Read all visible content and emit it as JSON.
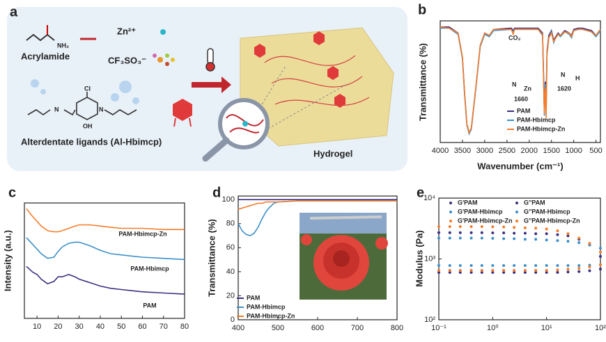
{
  "panel_a": {
    "label": "a",
    "acrylamide": "Acrylamide",
    "nh2": "NH₂",
    "zn": "Zn²⁺",
    "cf3so3": "CF₃SO₃⁻",
    "ligand": "Alterdentate ligands (Al-Hbimcp)",
    "hydrogel": "Hydrogel",
    "cl": "Cl",
    "oh": "OH",
    "n1": "N",
    "n2": "N"
  },
  "chart_data": [
    {
      "type": "line",
      "label": "b",
      "x_label": "Wavenumber (cm⁻¹)",
      "y_label": "Transmittance (%)",
      "xlim": [
        4000,
        400
      ],
      "xticks": [
        4000,
        3500,
        3000,
        2500,
        2000,
        1500,
        1000,
        500
      ],
      "ylim": [
        0,
        100
      ],
      "legend": "lower right",
      "annotations": [
        "CO₂",
        "1660",
        "1620",
        "N",
        "Zn",
        "N",
        "H"
      ],
      "x": [
        4000,
        3800,
        3600,
        3500,
        3450,
        3400,
        3350,
        3300,
        3200,
        3100,
        3000,
        2900,
        2800,
        2400,
        2360,
        2330,
        2000,
        1800,
        1700,
        1680,
        1660,
        1640,
        1620,
        1600,
        1560,
        1500,
        1450,
        1420,
        1350,
        1300,
        1200,
        1100,
        1050,
        1000,
        900,
        800,
        700,
        600,
        500,
        400
      ],
      "series": [
        {
          "name": "PAM",
          "color": "#3d2f7f",
          "values": [
            95,
            95,
            90,
            70,
            40,
            15,
            8,
            12,
            45,
            80,
            90,
            88,
            93,
            94,
            92,
            94,
            94,
            94,
            90,
            60,
            25,
            50,
            35,
            75,
            88,
            92,
            84,
            86,
            90,
            88,
            92,
            90,
            88,
            93,
            94,
            94,
            93,
            92,
            88,
            93
          ]
        },
        {
          "name": "PAM-Hbimcp",
          "color": "#3d8fc9",
          "values": [
            94,
            94,
            89,
            69,
            38,
            14,
            7,
            11,
            44,
            79,
            89,
            87,
            92,
            93,
            91,
            93,
            93,
            93,
            88,
            55,
            22,
            48,
            30,
            74,
            86,
            91,
            82,
            85,
            89,
            87,
            91,
            89,
            86,
            92,
            93,
            93,
            92,
            91,
            87,
            92
          ]
        },
        {
          "name": "PAM-Hbimcp-Zn",
          "color": "#f47c2a",
          "values": [
            95,
            94,
            90,
            70,
            40,
            15,
            8,
            12,
            45,
            80,
            90,
            88,
            93,
            93,
            89,
            93,
            93,
            93,
            89,
            58,
            24,
            45,
            20,
            72,
            86,
            90,
            83,
            85,
            89,
            88,
            91,
            90,
            87,
            92,
            93,
            93,
            92,
            91,
            88,
            93
          ]
        }
      ]
    },
    {
      "type": "line",
      "label": "c",
      "y_label": "Intensity (a.u.)",
      "xlim": [
        4,
        80
      ],
      "xticks": [
        10,
        20,
        30,
        40,
        50,
        60,
        70,
        80
      ],
      "ylim": [
        0,
        100
      ],
      "legend": "inline",
      "x": [
        5,
        8,
        10,
        12,
        15,
        18,
        20,
        22,
        25,
        28,
        30,
        35,
        40,
        45,
        50,
        55,
        60,
        70,
        80
      ],
      "series": [
        {
          "name": "PAM-Hbimcp-Zn",
          "color": "#f47c2a",
          "values": [
            95,
            88,
            84,
            80,
            76,
            75,
            75,
            76,
            78,
            80,
            81,
            81,
            80,
            79,
            78,
            78,
            78,
            77,
            77
          ]
        },
        {
          "name": "PAM-Hbimcp",
          "color": "#3d8fc9",
          "values": [
            70,
            64,
            60,
            56,
            52,
            53,
            58,
            62,
            65,
            66,
            66,
            63,
            59,
            56,
            55,
            54,
            53,
            52,
            51
          ]
        },
        {
          "name": "PAM",
          "color": "#3d2f7f",
          "values": [
            45,
            40,
            38,
            34,
            30,
            32,
            36,
            36,
            38,
            36,
            34,
            31,
            28,
            26,
            25,
            24,
            23,
            22,
            21
          ]
        }
      ]
    },
    {
      "type": "line",
      "label": "d",
      "y_label": "Transmittance (%)",
      "xlim": [
        400,
        800
      ],
      "xticks": [
        400,
        500,
        600,
        700,
        800
      ],
      "ylim": [
        0,
        103
      ],
      "yticks": [
        0,
        20,
        40,
        60,
        80,
        100
      ],
      "legend": "lower left",
      "x": [
        400,
        410,
        420,
        430,
        440,
        450,
        460,
        470,
        480,
        490,
        500,
        550,
        600,
        700,
        800
      ],
      "series": [
        {
          "name": "PAM",
          "color": "#3d2f7f",
          "values": [
            100,
            100,
            100,
            100,
            100,
            100,
            100,
            100,
            100,
            100,
            100,
            100,
            100,
            100,
            100
          ]
        },
        {
          "name": "PAM-Hbimcp",
          "color": "#3d8fc9",
          "values": [
            80,
            74,
            71,
            70,
            72,
            77,
            84,
            90,
            94,
            97,
            98,
            99,
            99,
            99,
            99
          ]
        },
        {
          "name": "PAM-Hbimcp-Zn",
          "color": "#f47c2a",
          "values": [
            92,
            93,
            94,
            95,
            96,
            97,
            97,
            98,
            98,
            98,
            98,
            99,
            99,
            99,
            99
          ]
        }
      ]
    },
    {
      "type": "scatter",
      "label": "e",
      "y_label": "Modulus (Pa)",
      "xlog": true,
      "ylog": true,
      "xlim": [
        0.1,
        100
      ],
      "xticks": [
        {
          "value": 0.1,
          "label": "10⁻¹"
        },
        {
          "value": 1,
          "label": "10⁰"
        },
        {
          "value": 10,
          "label": "10¹"
        },
        {
          "value": 100,
          "label": "10²"
        }
      ],
      "ylim": [
        100,
        10000
      ],
      "yticks": [
        {
          "value": 100,
          "label": "10²"
        },
        {
          "value": 1000,
          "label": "10³"
        },
        {
          "value": 10000,
          "label": "10⁴"
        }
      ],
      "legend": "upper",
      "x": [
        0.1,
        0.16,
        0.25,
        0.4,
        0.63,
        1,
        1.6,
        2.5,
        4,
        6.3,
        10,
        16,
        25,
        40,
        63,
        100
      ],
      "series": [
        {
          "name": "G'PAM",
          "color": "#3d2f7f",
          "values": [
            2700,
            2700,
            2700,
            2700,
            2700,
            2680,
            2680,
            2650,
            2650,
            2600,
            2600,
            2500,
            2400,
            2100,
            1700,
            1100
          ]
        },
        {
          "name": "G''PAM",
          "color": "#3d2f7f",
          "values": [
            600,
            600,
            600,
            600,
            600,
            600,
            600,
            600,
            600,
            600,
            600,
            600,
            610,
            620,
            640,
            680
          ]
        },
        {
          "name": "G'PAM-Hbimcp",
          "color": "#3d8fc9",
          "values": [
            2200,
            2200,
            2200,
            2200,
            2200,
            2180,
            2150,
            2150,
            2100,
            2100,
            2050,
            2000,
            1950,
            1850,
            1700,
            1500
          ]
        },
        {
          "name": "G''PAM-Hbimcp",
          "color": "#3d8fc9",
          "values": [
            780,
            780,
            780,
            780,
            780,
            780,
            780,
            780,
            780,
            780,
            780,
            780,
            780,
            780,
            790,
            800
          ]
        },
        {
          "name": "G'PAM-Hbimcp-Zn",
          "color": "#f47c2a",
          "values": [
            3400,
            3400,
            3400,
            3400,
            3400,
            3380,
            3350,
            3300,
            3250,
            3200,
            3100,
            2900,
            2600,
            2200,
            1800,
            1300
          ]
        },
        {
          "name": "G''PAM-Hbimcp-Zn",
          "color": "#f47c2a",
          "values": [
            650,
            650,
            650,
            650,
            650,
            650,
            650,
            650,
            650,
            650,
            650,
            660,
            680,
            700,
            740,
            800
          ]
        }
      ]
    }
  ]
}
